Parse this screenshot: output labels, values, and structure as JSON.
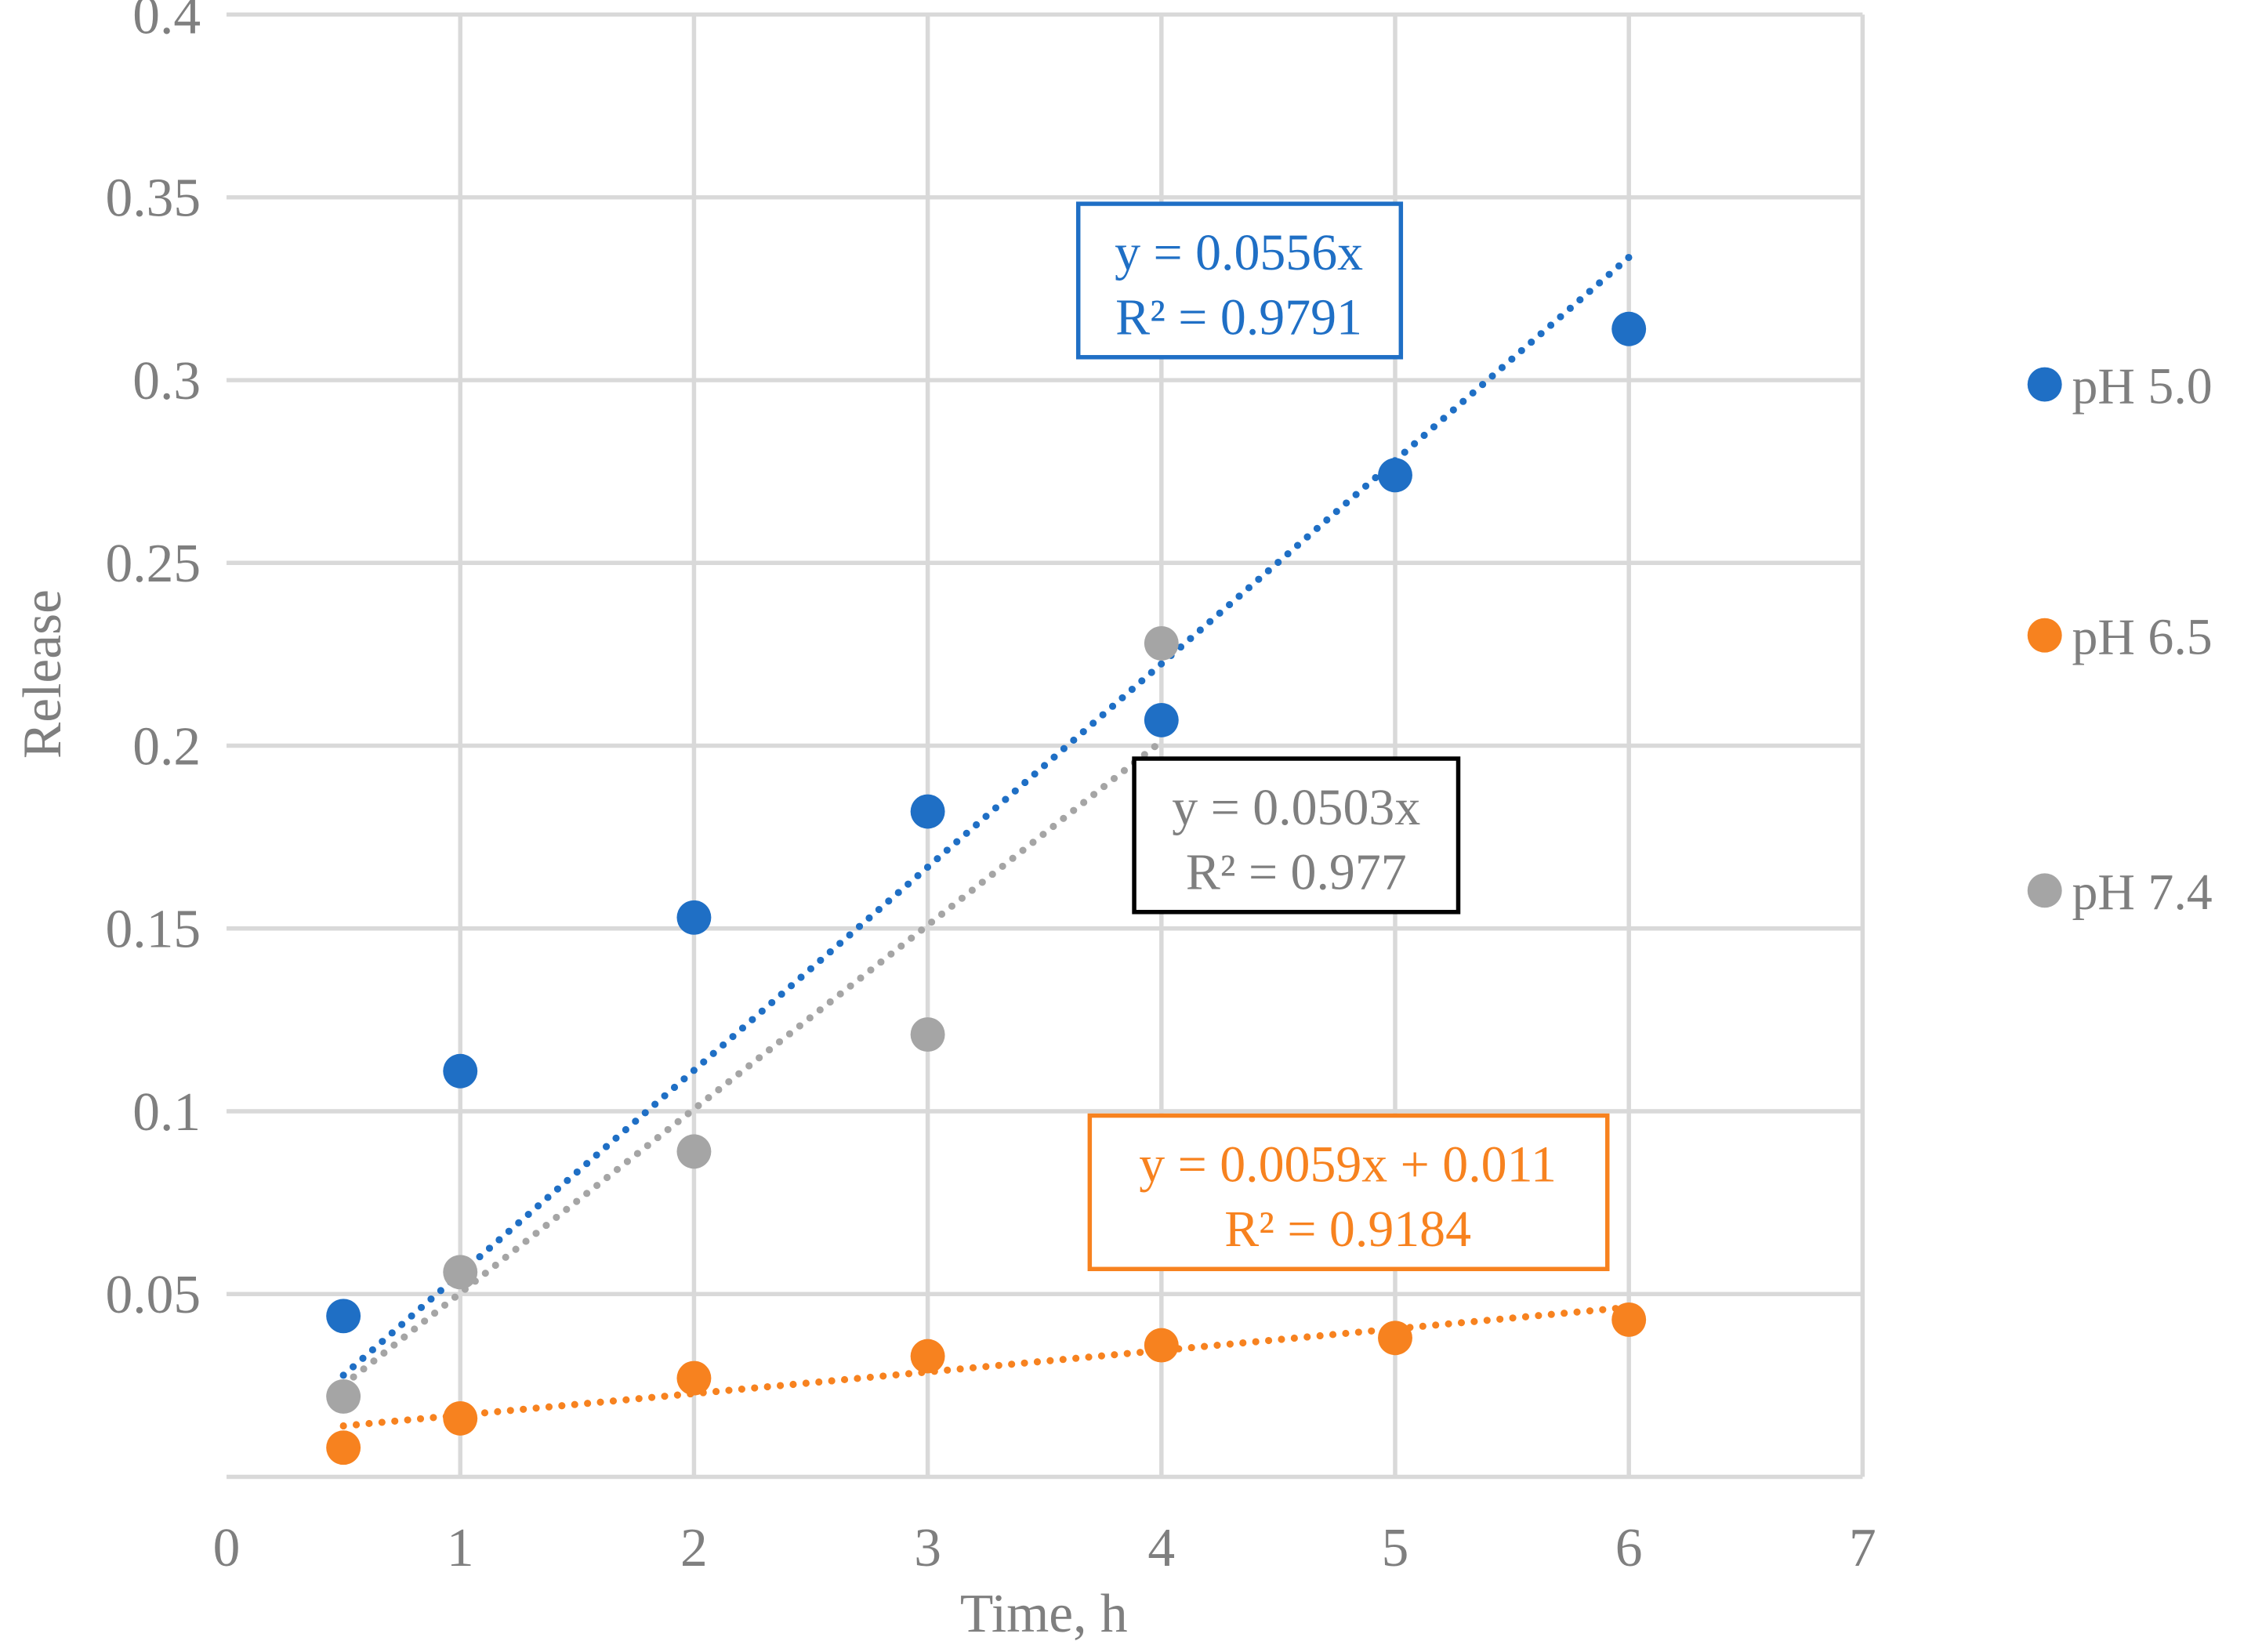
{
  "chart_data": {
    "type": "scatter",
    "title": "",
    "xlabel": "Time, h",
    "ylabel": "Release",
    "xlim": [
      0,
      7
    ],
    "ylim": [
      0,
      0.4
    ],
    "xticks": [
      "0",
      "1",
      "2",
      "3",
      "4",
      "5",
      "6",
      "7"
    ],
    "yticks": [
      "0.05",
      "0.1",
      "0.15",
      "0.2",
      "0.25",
      "0.3",
      "0.35",
      "0.4"
    ],
    "ytick_values": [
      0.05,
      0.1,
      0.15,
      0.2,
      0.25,
      0.3,
      0.35,
      0.4
    ],
    "grid": true,
    "legend_position": "right",
    "series": [
      {
        "name": "pH 5.0",
        "color": "#1f6fc5",
        "x": [
          0.5,
          1,
          2,
          3,
          4,
          5,
          6
        ],
        "y": [
          0.044,
          0.111,
          0.153,
          0.182,
          0.207,
          0.274,
          0.314
        ],
        "trend": {
          "slope": 0.0556,
          "intercept": 0,
          "x_range": [
            0.5,
            6
          ],
          "equation": "y = 0.0556x",
          "r2": "R² = 0.9791"
        }
      },
      {
        "name": "pH 6.5",
        "color": "#f7821f",
        "x": [
          0.5,
          1,
          2,
          3,
          4,
          5,
          6
        ],
        "y": [
          0.008,
          0.016,
          0.027,
          0.033,
          0.036,
          0.038,
          0.043
        ],
        "trend": {
          "slope": 0.0059,
          "intercept": 0.011,
          "x_range": [
            0.5,
            6
          ],
          "equation": "y = 0.0059x + 0.011",
          "r2": "R² = 0.9184"
        }
      },
      {
        "name": "pH 7.4",
        "color": "#a5a5a5",
        "x": [
          0.5,
          1,
          2,
          3,
          4
        ],
        "y": [
          0.022,
          0.056,
          0.089,
          0.121,
          0.228
        ],
        "trend": {
          "slope": 0.0503,
          "intercept": 0,
          "x_range": [
            0.5,
            4
          ],
          "equation": "y = 0.0503x",
          "r2": "R² = 0.977"
        }
      }
    ]
  }
}
